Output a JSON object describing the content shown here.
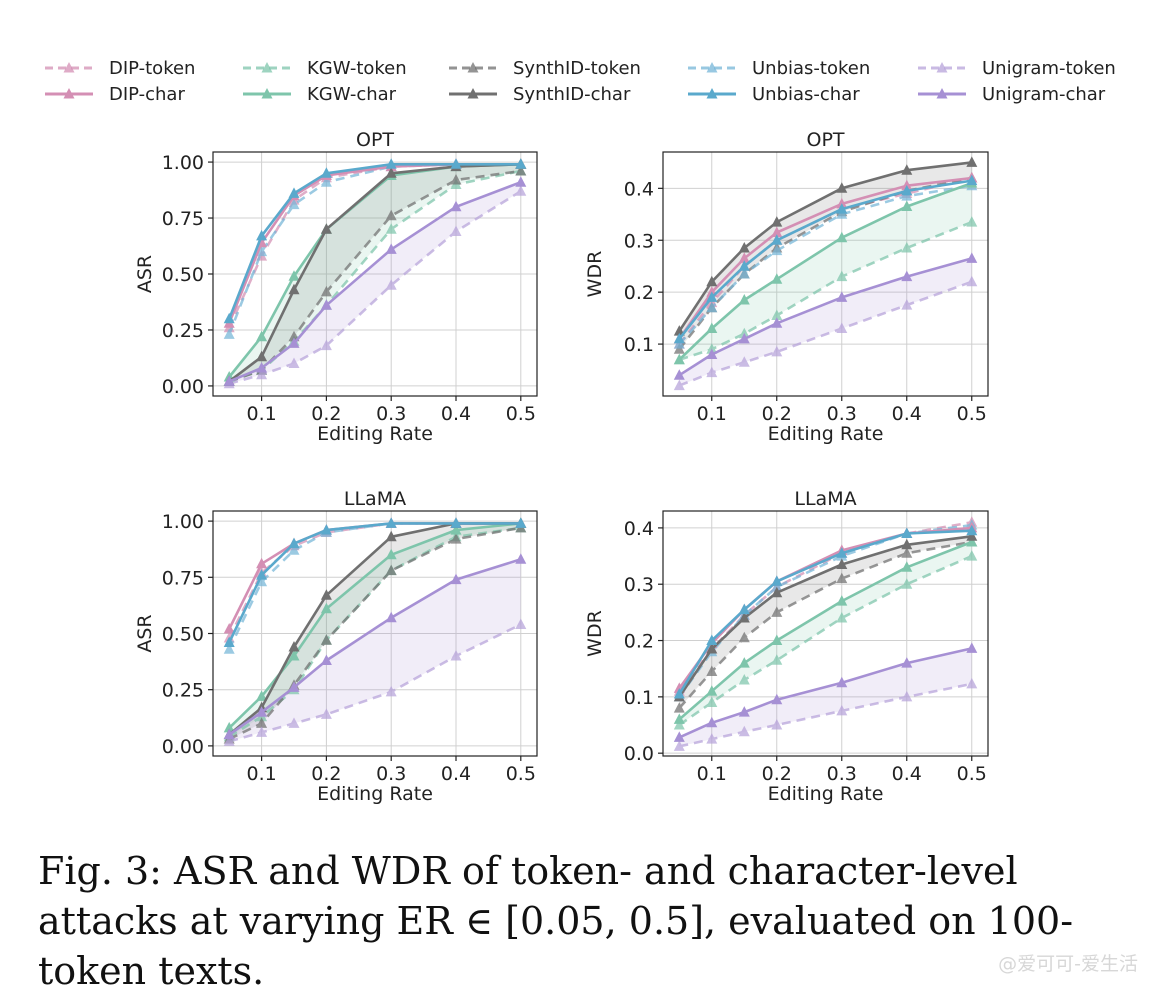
{
  "figure": {
    "caption": "Fig. 3: ASR and WDR of token- and character-level attacks at varying ER ∈ [0.05, 0.5], evaluated on 100-token texts.",
    "watermark": "@爱可可-爱生活"
  },
  "legend": [
    {
      "name": "DIP-token",
      "color": "#d48fb4",
      "dashed": true
    },
    {
      "name": "DIP-char",
      "color": "#d48fb4",
      "dashed": false
    },
    {
      "name": "KGW-token",
      "color": "#7ec5ab",
      "dashed": true
    },
    {
      "name": "KGW-char",
      "color": "#7ec5ab",
      "dashed": false
    },
    {
      "name": "SynthID-token",
      "color": "#707070",
      "dashed": true
    },
    {
      "name": "SynthID-char",
      "color": "#707070",
      "dashed": false
    },
    {
      "name": "Unbias-token",
      "color": "#76b6d8",
      "dashed": true
    },
    {
      "name": "Unbias-char",
      "color": "#5aa9cc",
      "dashed": false
    },
    {
      "name": "Unigram-token",
      "color": "#b7a3da",
      "dashed": true
    },
    {
      "name": "Unigram-char",
      "color": "#a690d4",
      "dashed": false
    }
  ],
  "chart_data": [
    {
      "type": "line",
      "title": "OPT",
      "xlabel": "Editing Rate",
      "ylabel": "ASR",
      "x": [
        0.05,
        0.1,
        0.15,
        0.2,
        0.3,
        0.4,
        0.5
      ],
      "xticks": [
        "0.1",
        "0.2",
        "0.3",
        "0.4",
        "0.5"
      ],
      "yticks": [
        "0.00",
        "0.25",
        "0.50",
        "0.75",
        "1.00"
      ],
      "grid": true,
      "series": [
        {
          "name": "DIP-token",
          "values": [
            0.26,
            0.58,
            0.83,
            0.93,
            0.98,
            0.99,
            0.99
          ]
        },
        {
          "name": "DIP-char",
          "values": [
            0.28,
            0.64,
            0.85,
            0.94,
            0.98,
            0.99,
            0.99
          ]
        },
        {
          "name": "KGW-token",
          "values": [
            0.02,
            0.07,
            0.2,
            0.36,
            0.7,
            0.9,
            0.96
          ]
        },
        {
          "name": "KGW-char",
          "values": [
            0.04,
            0.22,
            0.49,
            0.7,
            0.94,
            0.98,
            0.99
          ]
        },
        {
          "name": "SynthID-token",
          "values": [
            0.02,
            0.07,
            0.22,
            0.42,
            0.76,
            0.92,
            0.96
          ]
        },
        {
          "name": "SynthID-char",
          "values": [
            0.02,
            0.13,
            0.43,
            0.7,
            0.95,
            0.98,
            0.99
          ]
        },
        {
          "name": "Unbias-token",
          "values": [
            0.23,
            0.6,
            0.81,
            0.91,
            0.98,
            0.99,
            0.99
          ]
        },
        {
          "name": "Unbias-char",
          "values": [
            0.3,
            0.67,
            0.86,
            0.95,
            0.99,
            0.99,
            0.99
          ]
        },
        {
          "name": "Unigram-token",
          "values": [
            0.01,
            0.05,
            0.1,
            0.18,
            0.45,
            0.69,
            0.87
          ]
        },
        {
          "name": "Unigram-char",
          "values": [
            0.02,
            0.08,
            0.19,
            0.36,
            0.61,
            0.8,
            0.91
          ]
        }
      ],
      "shading": [
        {
          "series": [
            "SynthID-token",
            "SynthID-char"
          ],
          "color": "#707070"
        },
        {
          "series": [
            "KGW-token",
            "KGW-char"
          ],
          "color": "#7ec5ab"
        },
        {
          "series": [
            "Unigram-token",
            "Unigram-char"
          ],
          "color": "#a690d4"
        }
      ]
    },
    {
      "type": "line",
      "title": "OPT",
      "xlabel": "Editing Rate",
      "ylabel": "WDR",
      "x": [
        0.05,
        0.1,
        0.15,
        0.2,
        0.3,
        0.4,
        0.5
      ],
      "xticks": [
        "0.1",
        "0.2",
        "0.3",
        "0.4",
        "0.5"
      ],
      "yticks": [
        "0.1",
        "0.2",
        "0.3",
        "0.4"
      ],
      "grid": true,
      "series": [
        {
          "name": "DIP-token",
          "values": [
            0.1,
            0.18,
            0.25,
            0.3,
            0.36,
            0.39,
            0.42
          ]
        },
        {
          "name": "DIP-char",
          "values": [
            0.11,
            0.2,
            0.265,
            0.315,
            0.37,
            0.405,
            0.42
          ]
        },
        {
          "name": "KGW-token",
          "values": [
            0.07,
            0.09,
            0.12,
            0.155,
            0.23,
            0.285,
            0.335
          ]
        },
        {
          "name": "KGW-char",
          "values": [
            0.07,
            0.13,
            0.185,
            0.225,
            0.305,
            0.365,
            0.41
          ]
        },
        {
          "name": "SynthID-token",
          "values": [
            0.09,
            0.17,
            0.235,
            0.285,
            0.355,
            0.395,
            0.42
          ]
        },
        {
          "name": "SynthID-char",
          "values": [
            0.125,
            0.22,
            0.285,
            0.335,
            0.4,
            0.435,
            0.45
          ]
        },
        {
          "name": "Unbias-token",
          "values": [
            0.1,
            0.17,
            0.235,
            0.28,
            0.35,
            0.385,
            0.405
          ]
        },
        {
          "name": "Unbias-char",
          "values": [
            0.11,
            0.19,
            0.25,
            0.3,
            0.36,
            0.395,
            0.415
          ]
        },
        {
          "name": "Unigram-token",
          "values": [
            0.02,
            0.045,
            0.065,
            0.085,
            0.13,
            0.175,
            0.22
          ]
        },
        {
          "name": "Unigram-char",
          "values": [
            0.04,
            0.08,
            0.11,
            0.14,
            0.19,
            0.23,
            0.265
          ]
        }
      ],
      "shading": [
        {
          "series": [
            "SynthID-token",
            "SynthID-char"
          ],
          "color": "#707070"
        },
        {
          "series": [
            "KGW-token",
            "KGW-char"
          ],
          "color": "#7ec5ab"
        },
        {
          "series": [
            "Unigram-token",
            "Unigram-char"
          ],
          "color": "#a690d4"
        }
      ]
    },
    {
      "type": "line",
      "title": "LLaMA",
      "xlabel": "Editing Rate",
      "ylabel": "ASR",
      "x": [
        0.05,
        0.1,
        0.15,
        0.2,
        0.3,
        0.4,
        0.5
      ],
      "xticks": [
        "0.1",
        "0.2",
        "0.3",
        "0.4",
        "0.5"
      ],
      "yticks": [
        "0.00",
        "0.25",
        "0.50",
        "0.75",
        "1.00"
      ],
      "grid": true,
      "series": [
        {
          "name": "DIP-token",
          "values": [
            0.48,
            0.77,
            0.89,
            0.95,
            0.99,
            0.99,
            0.99
          ]
        },
        {
          "name": "DIP-char",
          "values": [
            0.52,
            0.81,
            0.9,
            0.96,
            0.99,
            0.99,
            0.99
          ]
        },
        {
          "name": "KGW-token",
          "values": [
            0.04,
            0.13,
            0.25,
            0.47,
            0.78,
            0.93,
            0.97
          ]
        },
        {
          "name": "KGW-char",
          "values": [
            0.08,
            0.22,
            0.4,
            0.61,
            0.85,
            0.96,
            0.99
          ]
        },
        {
          "name": "SynthID-token",
          "values": [
            0.03,
            0.1,
            0.27,
            0.47,
            0.78,
            0.92,
            0.97
          ]
        },
        {
          "name": "SynthID-char",
          "values": [
            0.05,
            0.17,
            0.44,
            0.67,
            0.93,
            0.99,
            0.99
          ]
        },
        {
          "name": "Unbias-token",
          "values": [
            0.43,
            0.73,
            0.87,
            0.95,
            0.99,
            0.99,
            0.99
          ]
        },
        {
          "name": "Unbias-char",
          "values": [
            0.46,
            0.76,
            0.9,
            0.96,
            0.99,
            0.99,
            0.99
          ]
        },
        {
          "name": "Unigram-token",
          "values": [
            0.02,
            0.06,
            0.1,
            0.14,
            0.24,
            0.4,
            0.54
          ]
        },
        {
          "name": "Unigram-char",
          "values": [
            0.05,
            0.15,
            0.26,
            0.38,
            0.57,
            0.74,
            0.83
          ]
        }
      ],
      "shading": [
        {
          "series": [
            "SynthID-token",
            "SynthID-char"
          ],
          "color": "#707070"
        },
        {
          "series": [
            "KGW-token",
            "KGW-char"
          ],
          "color": "#7ec5ab"
        },
        {
          "series": [
            "Unigram-token",
            "Unigram-char"
          ],
          "color": "#a690d4"
        }
      ]
    },
    {
      "type": "line",
      "title": "LLaMA",
      "xlabel": "Editing Rate",
      "ylabel": "WDR",
      "x": [
        0.05,
        0.1,
        0.15,
        0.2,
        0.3,
        0.4,
        0.5
      ],
      "xticks": [
        "0.1",
        "0.2",
        "0.3",
        "0.4",
        "0.5"
      ],
      "yticks": [
        "0.0",
        "0.1",
        "0.2",
        "0.3",
        "0.4"
      ],
      "grid": true,
      "series": [
        {
          "name": "DIP-token",
          "values": [
            0.11,
            0.185,
            0.245,
            0.295,
            0.355,
            0.39,
            0.41
          ]
        },
        {
          "name": "DIP-char",
          "values": [
            0.115,
            0.195,
            0.255,
            0.305,
            0.36,
            0.39,
            0.4
          ]
        },
        {
          "name": "KGW-token",
          "values": [
            0.05,
            0.09,
            0.13,
            0.165,
            0.24,
            0.3,
            0.35
          ]
        },
        {
          "name": "KGW-char",
          "values": [
            0.06,
            0.11,
            0.16,
            0.2,
            0.27,
            0.33,
            0.375
          ]
        },
        {
          "name": "SynthID-token",
          "values": [
            0.08,
            0.145,
            0.205,
            0.25,
            0.31,
            0.355,
            0.375
          ]
        },
        {
          "name": "SynthID-char",
          "values": [
            0.1,
            0.185,
            0.24,
            0.285,
            0.335,
            0.37,
            0.385
          ]
        },
        {
          "name": "Unbias-token",
          "values": [
            0.1,
            0.18,
            0.245,
            0.295,
            0.35,
            0.39,
            0.405
          ]
        },
        {
          "name": "Unbias-char",
          "values": [
            0.105,
            0.2,
            0.255,
            0.305,
            0.355,
            0.39,
            0.395
          ]
        },
        {
          "name": "Unigram-token",
          "values": [
            0.012,
            0.025,
            0.038,
            0.05,
            0.075,
            0.1,
            0.123
          ]
        },
        {
          "name": "Unigram-char",
          "values": [
            0.028,
            0.054,
            0.073,
            0.095,
            0.125,
            0.16,
            0.186
          ]
        }
      ],
      "shading": [
        {
          "series": [
            "SynthID-token",
            "SynthID-char"
          ],
          "color": "#707070"
        },
        {
          "series": [
            "KGW-token",
            "KGW-char"
          ],
          "color": "#7ec5ab"
        },
        {
          "series": [
            "Unigram-token",
            "Unigram-char"
          ],
          "color": "#a690d4"
        }
      ]
    }
  ]
}
